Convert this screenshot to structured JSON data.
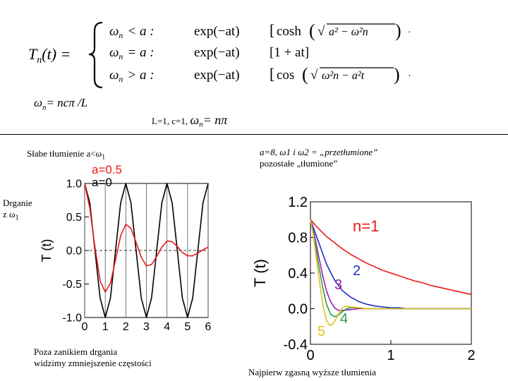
{
  "formula": {
    "lhs": "T",
    "lhs_sub": "n",
    "lhs_arg": "(t) =",
    "cases": [
      {
        "omega": "ω",
        "sub": "n",
        "rel": "< a :",
        "decay": "exp(−at)",
        "term": "cosh",
        "root": "a² − ω²n",
        "tail": "·"
      },
      {
        "omega": "ω",
        "sub": "n",
        "rel": "= a :",
        "decay": "exp(−at)",
        "term": "[1 + at]",
        "root": "",
        "tail": ""
      },
      {
        "omega": "ω",
        "sub": "n",
        "rel": "> a :",
        "decay": "exp(−at)",
        "term": "cos",
        "root": "ω²n − a²t",
        "tail": "·"
      }
    ]
  },
  "omega_def": {
    "omega": "ω",
    "sub": "n",
    "rest": "= ncπ /L"
  },
  "case_params": {
    "text": "L=1, c=1,",
    "omega": "ω",
    "sub": "n",
    "rest": "= nπ"
  },
  "left_panel": {
    "caption_text": "Słabe tłumienie a<ω",
    "caption_sub": "1",
    "side_note_line1": "Drganie",
    "side_note_line2": "z ω",
    "side_note_sub": "1",
    "bottom_note_line1": "Poza zanikiem drgania",
    "bottom_note_line2": "widzimy zmniejszenie częstości"
  },
  "right_panel": {
    "caption_line1": "a=8, ω1 i ω2 = „przetłumione”",
    "caption_line2": "pozostałe „tłumione”",
    "bottom_note": "Najpierw zgasną wyższe tłumienia"
  },
  "chart_data": [
    {
      "type": "line",
      "ylabel": "T (t)",
      "xlim": [
        0,
        6
      ],
      "ylim": [
        -1.0,
        1.0
      ],
      "x_ticks": [
        "0",
        "1",
        "2",
        "3",
        "4",
        "5",
        "6"
      ],
      "y_ticks": [
        "1.0",
        "0.5",
        "0.0",
        "-0.5",
        "-1.0"
      ],
      "grid": true,
      "annotations": [
        {
          "text": "a=0.5",
          "color": "#e8191a"
        },
        {
          "text": "a=0",
          "color": "#000000"
        }
      ],
      "series": [
        {
          "name": "a=0",
          "color": "#000000",
          "x": [
            0,
            0.25,
            0.5,
            0.75,
            1,
            1.25,
            1.5,
            1.75,
            2,
            2.25,
            2.5,
            2.75,
            3,
            3.25,
            3.5,
            3.75,
            4,
            4.25,
            4.5,
            4.75,
            5,
            5.25,
            5.5,
            5.75,
            6
          ],
          "y": [
            1,
            0.71,
            0,
            -0.71,
            -1,
            -0.71,
            0,
            0.71,
            1,
            0.71,
            0,
            -0.71,
            -1,
            -0.71,
            0,
            0.71,
            1,
            0.71,
            0,
            -0.71,
            -1,
            -0.71,
            0,
            0.71,
            1
          ]
        },
        {
          "name": "a=0.5",
          "color": "#e8191a",
          "x": [
            0,
            0.25,
            0.5,
            0.75,
            1,
            1.25,
            1.5,
            1.75,
            2,
            2.25,
            2.5,
            2.75,
            3,
            3.25,
            3.5,
            3.75,
            4,
            4.25,
            4.5,
            4.75,
            5,
            5.25,
            5.5,
            5.75,
            6
          ],
          "y": [
            1,
            0.63,
            0.05,
            -0.45,
            -0.62,
            -0.49,
            -0.14,
            0.22,
            0.39,
            0.33,
            0.12,
            -0.1,
            -0.23,
            -0.21,
            -0.09,
            0.05,
            0.14,
            0.13,
            0.06,
            -0.03,
            -0.08,
            -0.08,
            -0.04,
            0.01,
            0.05
          ]
        }
      ]
    },
    {
      "type": "line",
      "ylabel": "T (t)",
      "xlim": [
        0,
        2
      ],
      "ylim": [
        -0.4,
        1.2
      ],
      "x_ticks": [
        "0",
        "1",
        "2"
      ],
      "y_ticks": [
        "1.2",
        "0.8",
        "0.4",
        "0.0",
        "-0.4"
      ],
      "grid": false,
      "series": [
        {
          "name": "n=1",
          "color": "#e8191a",
          "x": [
            0,
            0.1,
            0.2,
            0.3,
            0.4,
            0.5,
            0.6,
            0.7,
            0.8,
            0.9,
            1,
            1.1,
            1.2,
            1.3,
            1.4,
            1.5,
            1.6,
            1.7,
            1.8,
            1.9,
            2
          ],
          "y": [
            1,
            0.9,
            0.81,
            0.74,
            0.67,
            0.61,
            0.56,
            0.51,
            0.47,
            0.43,
            0.4,
            0.37,
            0.34,
            0.31,
            0.29,
            0.26,
            0.24,
            0.22,
            0.2,
            0.18,
            0.16
          ]
        },
        {
          "name": "2",
          "color": "#1f2fbf",
          "x": [
            0,
            0.1,
            0.2,
            0.3,
            0.4,
            0.5,
            0.6,
            0.7,
            0.8,
            0.9,
            1,
            1.1,
            1.2,
            1.3,
            1.4,
            1.5,
            1.6,
            1.7,
            1.8,
            1.9,
            2
          ],
          "y": [
            1,
            0.75,
            0.5,
            0.32,
            0.2,
            0.13,
            0.08,
            0.05,
            0.03,
            0.02,
            0.01,
            0.01,
            0,
            0,
            0,
            0,
            0,
            0,
            0,
            0,
            0
          ]
        },
        {
          "name": "3",
          "color": "#9a1fb0",
          "x": [
            0,
            0.05,
            0.1,
            0.15,
            0.2,
            0.25,
            0.3,
            0.35,
            0.4,
            0.5,
            0.6,
            0.7,
            0.8,
            1,
            1.5,
            2
          ],
          "y": [
            1,
            0.82,
            0.6,
            0.38,
            0.2,
            0.08,
            0.01,
            -0.02,
            -0.02,
            -0.01,
            0,
            0,
            0,
            0,
            0,
            0
          ]
        },
        {
          "name": "4",
          "color": "#2a9a4a",
          "x": [
            0,
            0.05,
            0.1,
            0.15,
            0.2,
            0.25,
            0.3,
            0.35,
            0.4,
            0.45,
            0.5,
            0.6,
            0.7,
            0.8,
            1,
            1.5,
            2
          ],
          "y": [
            1,
            0.78,
            0.5,
            0.25,
            0.05,
            -0.06,
            -0.09,
            -0.07,
            -0.03,
            0,
            0.01,
            0.01,
            0,
            0,
            0,
            0,
            0
          ]
        },
        {
          "name": "5",
          "color": "#e0c020",
          "x": [
            0,
            0.04,
            0.08,
            0.12,
            0.16,
            0.2,
            0.24,
            0.28,
            0.32,
            0.36,
            0.4,
            0.45,
            0.5,
            0.6,
            0.7,
            0.8,
            1,
            1.5,
            2
          ],
          "y": [
            1,
            0.8,
            0.52,
            0.25,
            0.02,
            -0.13,
            -0.19,
            -0.17,
            -0.11,
            -0.04,
            0.01,
            0.03,
            0.02,
            0.01,
            0,
            0,
            0,
            0,
            0
          ]
        }
      ]
    }
  ]
}
